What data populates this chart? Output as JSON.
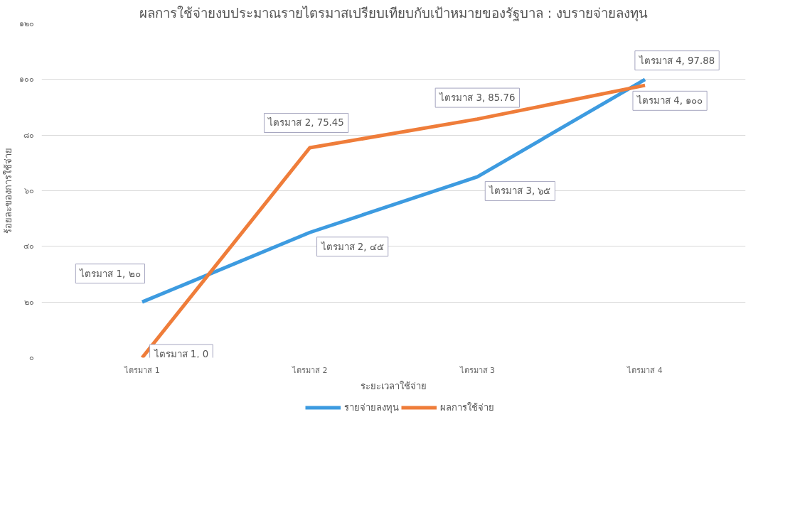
{
  "chart_data": {
    "type": "line",
    "title": "ผลการใช้จ่ายงบประมาณรายไตรมาสเปรียบเทียบกับเป้าหมายของรัฐบาล : งบรายจ่ายลงทุน",
    "xlabel": "ระยะเวลาใช้จ่าย",
    "ylabel": "ร้อยละของการใช้จ่าย",
    "categories": [
      "ไตรมาส 1",
      "ไตรมาส 2",
      "ไตรมาส 3",
      "ไตรมาส 4"
    ],
    "series": [
      {
        "name": "รายจ่ายลงทุน",
        "color": "#3d9be0",
        "values": [
          20,
          45,
          65,
          100
        ],
        "value_labels": [
          "ไตรมาส 1, ๒๐",
          "ไตรมาส 2, ๔๕",
          "ไตรมาส 3, ๖๕",
          "ไตรมาส 4, ๑๐๐"
        ]
      },
      {
        "name": "ผลการใช้จ่าย",
        "color": "#ef7d3a",
        "values": [
          0,
          75.45,
          85.76,
          97.88
        ],
        "value_labels": [
          "ไตรมาส 1, 0",
          "ไตรมาส 2, 75.45",
          "ไตรมาส 3, 85.76",
          "ไตรมาส 4, 97.88"
        ]
      }
    ],
    "ylim": [
      0,
      120
    ],
    "yticks": [
      {
        "value": 0,
        "label": "๐"
      },
      {
        "value": 20,
        "label": "๒๐"
      },
      {
        "value": 40,
        "label": "๔๐"
      },
      {
        "value": 60,
        "label": "๖๐"
      },
      {
        "value": 80,
        "label": "๘๐"
      },
      {
        "value": 100,
        "label": "๑๐๐"
      },
      {
        "value": 120,
        "label": "๑๒๐"
      }
    ],
    "grid": "y",
    "legend": "bottom",
    "marker": "none",
    "line_style": "solid"
  }
}
